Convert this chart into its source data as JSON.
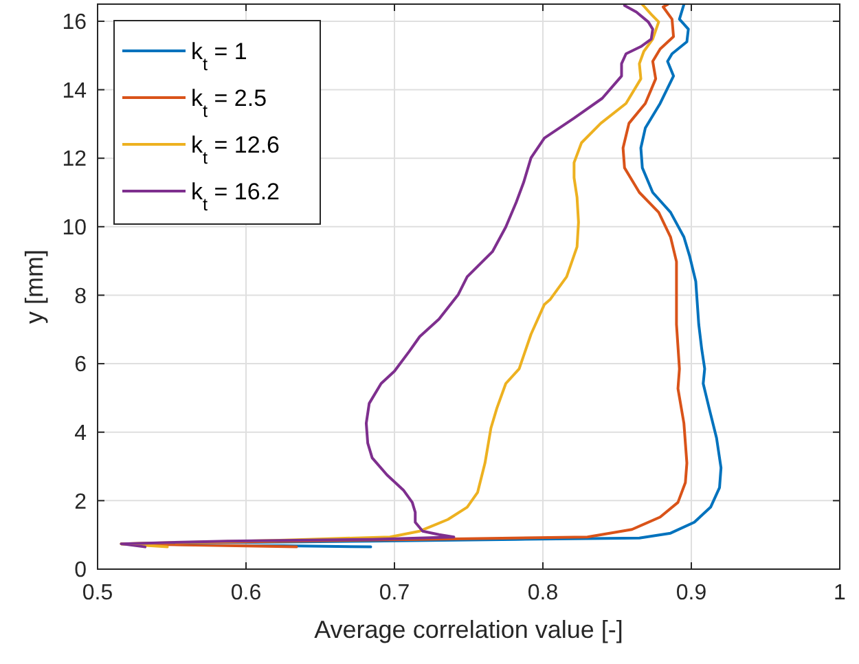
{
  "chart_data": {
    "type": "line",
    "xlabel": "Average correlation value [-]",
    "ylabel": "y [mm]",
    "xlim": [
      0.5,
      1
    ],
    "ylim": [
      0,
      16.5
    ],
    "xticks": [
      0.5,
      0.6,
      0.7,
      0.8,
      0.9,
      1
    ],
    "yticks": [
      0,
      2,
      4,
      6,
      8,
      10,
      12,
      14,
      16
    ],
    "grid": true,
    "legend": "top left",
    "line_style": "solid",
    "marker": "none",
    "series": [
      {
        "name": "k$_{t}$ = 1",
        "color": "#0072bd",
        "x": [
          0.895,
          0.892,
          0.898,
          0.897,
          0.887,
          0.884,
          0.888,
          0.879,
          0.869,
          0.866,
          0.867,
          0.874,
          0.886,
          0.895,
          0.899,
          0.903,
          0.905,
          0.907,
          0.909,
          0.908,
          0.912,
          0.917,
          0.92,
          0.919,
          0.913,
          0.902,
          0.886,
          0.865,
          0.782,
          0.684,
          0.516,
          0.684
        ],
        "values": [
          16.49,
          16.06,
          15.77,
          15.4,
          15.05,
          14.83,
          14.4,
          13.6,
          12.88,
          12.3,
          11.72,
          11.0,
          10.42,
          9.7,
          9.12,
          8.4,
          7.15,
          6.43,
          5.85,
          5.42,
          4.7,
          3.83,
          2.96,
          2.38,
          1.81,
          1.37,
          1.05,
          0.91,
          0.87,
          0.82,
          0.74,
          0.65
        ]
      },
      {
        "name": "k$_{t}$ = 2.5",
        "color": "#d95319",
        "x": [
          0.884,
          0.881,
          0.887,
          0.888,
          0.879,
          0.874,
          0.876,
          0.869,
          0.858,
          0.854,
          0.855,
          0.865,
          0.878,
          0.886,
          0.89,
          0.89,
          0.89,
          0.892,
          0.891,
          0.895,
          0.897,
          0.896,
          0.891,
          0.879,
          0.86,
          0.83,
          0.717,
          0.587,
          0.516,
          0.634
        ],
        "values": [
          16.49,
          16.42,
          16.06,
          15.55,
          15.19,
          14.83,
          14.32,
          13.6,
          13.02,
          12.3,
          11.72,
          11.0,
          10.42,
          9.7,
          8.98,
          7.97,
          7.15,
          5.85,
          5.27,
          4.26,
          3.1,
          2.53,
          1.95,
          1.52,
          1.16,
          0.94,
          0.87,
          0.79,
          0.74,
          0.65
        ]
      },
      {
        "name": "k$_{t}$ = 12.6",
        "color": "#edb120",
        "x": [
          0.867,
          0.873,
          0.878,
          0.874,
          0.868,
          0.865,
          0.866,
          0.856,
          0.839,
          0.826,
          0.821,
          0.821,
          0.823,
          0.824,
          0.823,
          0.816,
          0.805,
          0.801,
          0.792,
          0.784,
          0.775,
          0.769,
          0.765,
          0.761,
          0.756,
          0.749,
          0.736,
          0.717,
          0.697,
          0.619,
          0.516,
          0.547
        ],
        "values": [
          16.49,
          16.2,
          15.98,
          15.48,
          15.12,
          14.76,
          14.32,
          13.6,
          13.02,
          12.45,
          11.87,
          11.43,
          10.86,
          10.13,
          9.41,
          8.54,
          7.88,
          7.73,
          6.86,
          5.85,
          5.42,
          4.7,
          4.12,
          3.1,
          2.24,
          1.81,
          1.45,
          1.11,
          0.94,
          0.84,
          0.74,
          0.65
        ]
      },
      {
        "name": "k$_{t}$ = 16.2",
        "color": "#7e2f8e",
        "x": [
          0.855,
          0.863,
          0.871,
          0.874,
          0.873,
          0.866,
          0.856,
          0.853,
          0.853,
          0.84,
          0.821,
          0.801,
          0.792,
          0.787,
          0.782,
          0.775,
          0.766,
          0.749,
          0.743,
          0.73,
          0.717,
          0.71,
          0.7,
          0.691,
          0.683,
          0.681,
          0.682,
          0.685,
          0.695,
          0.706,
          0.712,
          0.714,
          0.714,
          0.719,
          0.73,
          0.74,
          0.685,
          0.587,
          0.516,
          0.532
        ],
        "values": [
          16.46,
          16.27,
          15.98,
          15.77,
          15.48,
          15.26,
          15.05,
          14.76,
          14.4,
          13.75,
          13.17,
          12.59,
          12.01,
          11.29,
          10.71,
          9.99,
          9.27,
          8.54,
          8.02,
          7.3,
          6.79,
          6.36,
          5.78,
          5.42,
          4.84,
          4.26,
          3.68,
          3.25,
          2.75,
          2.31,
          1.95,
          1.66,
          1.37,
          1.11,
          1.01,
          0.94,
          0.87,
          0.82,
          0.74,
          0.65
        ]
      }
    ]
  }
}
